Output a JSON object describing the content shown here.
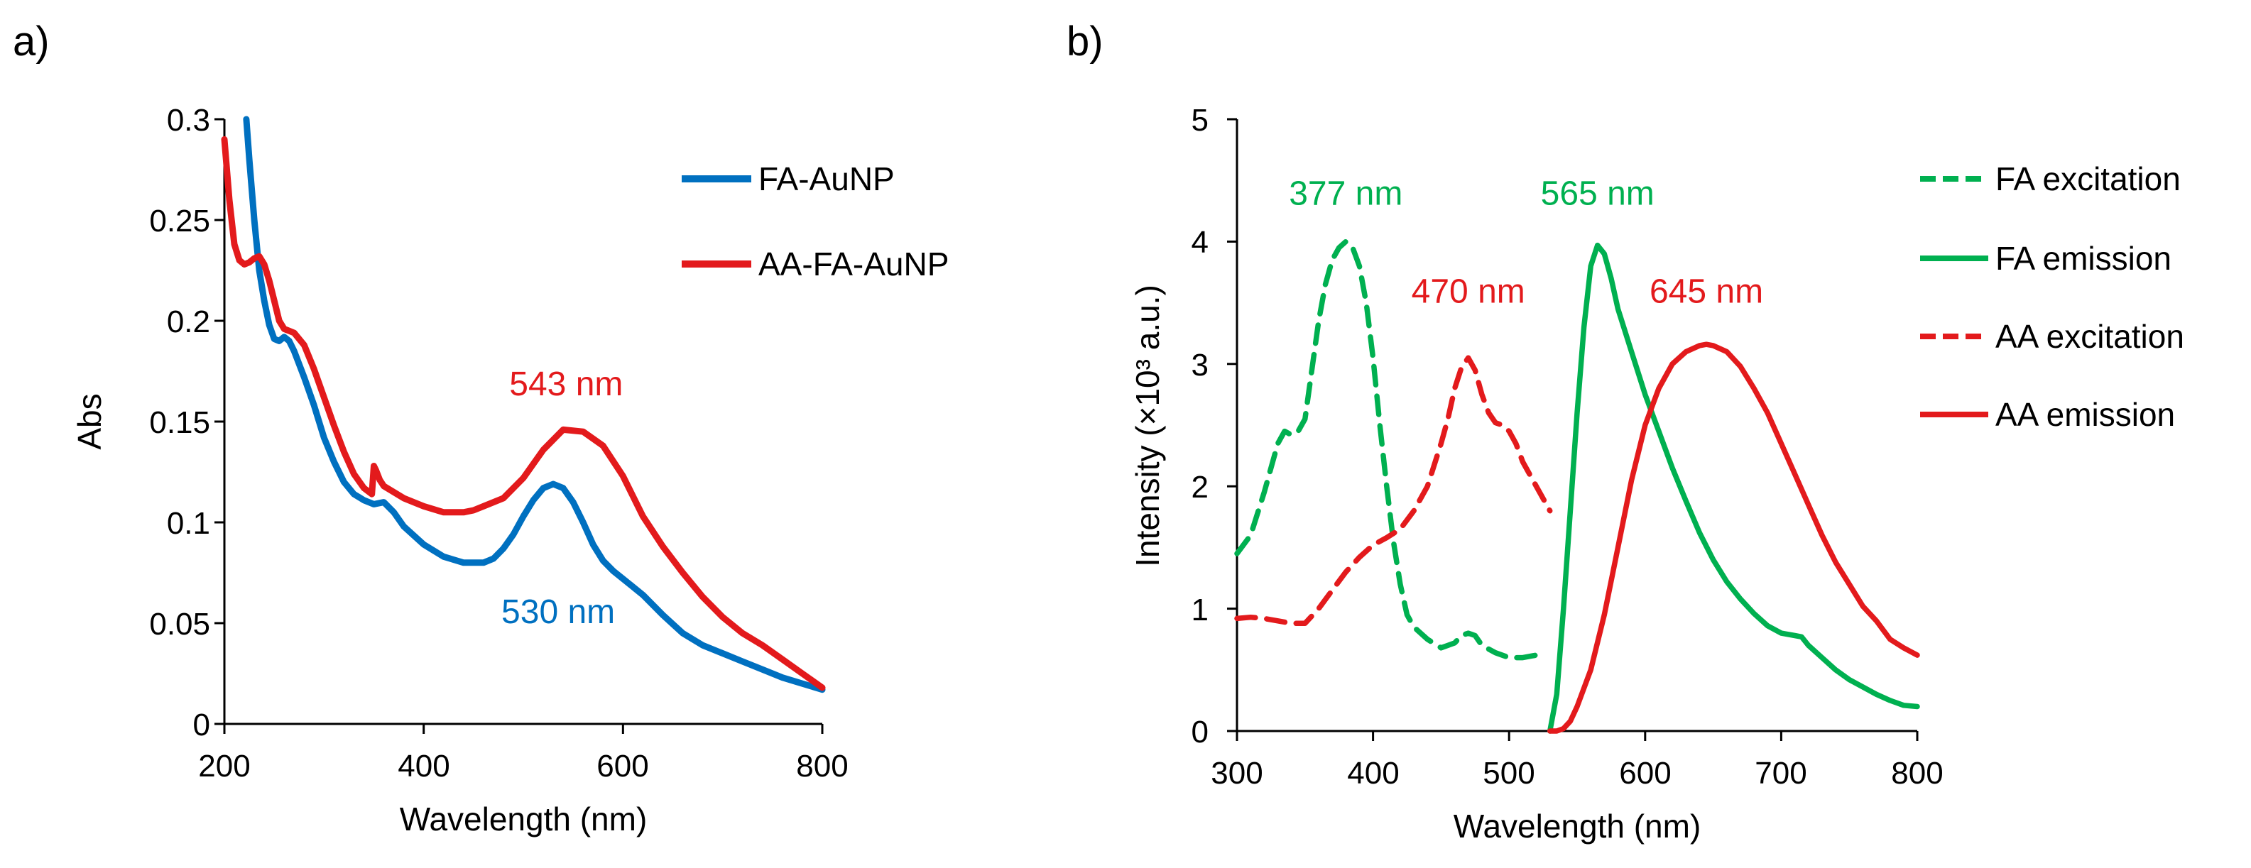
{
  "chart_data": [
    {
      "panel_label": "a)",
      "type": "line",
      "xlabel": "Wavelength (nm)",
      "ylabel": "Abs",
      "xlim": [
        200,
        800
      ],
      "ylim": [
        0,
        0.3
      ],
      "xticks": [
        "200",
        "400",
        "600",
        "800"
      ],
      "yticks": [
        "0",
        "0.05",
        "0.1",
        "0.15",
        "0.2",
        "0.25",
        "0.3"
      ],
      "grid": false,
      "legend_position": "top-right",
      "series": [
        {
          "name": "FA-AuNP",
          "color": "#0070C0",
          "dash": "solid",
          "x": [
            222,
            225,
            230,
            235,
            240,
            245,
            250,
            255,
            260,
            265,
            270,
            280,
            290,
            300,
            310,
            320,
            330,
            340,
            350,
            360,
            370,
            380,
            400,
            420,
            440,
            460,
            470,
            480,
            490,
            500,
            510,
            520,
            530,
            540,
            550,
            560,
            570,
            580,
            590,
            600,
            620,
            640,
            660,
            680,
            700,
            720,
            740,
            760,
            780,
            800
          ],
          "y": [
            0.3,
            0.28,
            0.25,
            0.225,
            0.21,
            0.198,
            0.191,
            0.19,
            0.192,
            0.19,
            0.185,
            0.172,
            0.158,
            0.142,
            0.13,
            0.12,
            0.114,
            0.111,
            0.109,
            0.11,
            0.105,
            0.098,
            0.089,
            0.083,
            0.08,
            0.08,
            0.082,
            0.087,
            0.094,
            0.103,
            0.111,
            0.117,
            0.119,
            0.117,
            0.11,
            0.1,
            0.089,
            0.081,
            0.076,
            0.072,
            0.064,
            0.054,
            0.045,
            0.039,
            0.035,
            0.031,
            0.027,
            0.023,
            0.02,
            0.017
          ]
        },
        {
          "name": "AA-FA-AuNP",
          "color": "#E31A1C",
          "dash": "solid",
          "x": [
            200,
            205,
            210,
            215,
            220,
            225,
            230,
            235,
            240,
            245,
            250,
            255,
            260,
            265,
            270,
            280,
            290,
            300,
            310,
            320,
            330,
            340,
            348,
            350,
            352,
            356,
            360,
            380,
            400,
            420,
            440,
            450,
            460,
            480,
            500,
            520,
            540,
            560,
            580,
            600,
            620,
            640,
            660,
            680,
            700,
            720,
            740,
            760,
            780,
            800
          ],
          "y": [
            0.29,
            0.26,
            0.238,
            0.23,
            0.228,
            0.229,
            0.231,
            0.232,
            0.228,
            0.22,
            0.21,
            0.2,
            0.196,
            0.195,
            0.194,
            0.188,
            0.176,
            0.162,
            0.148,
            0.135,
            0.124,
            0.117,
            0.114,
            0.128,
            0.126,
            0.121,
            0.118,
            0.112,
            0.108,
            0.105,
            0.105,
            0.106,
            0.108,
            0.112,
            0.122,
            0.136,
            0.146,
            0.145,
            0.138,
            0.123,
            0.103,
            0.088,
            0.075,
            0.063,
            0.053,
            0.045,
            0.039,
            0.032,
            0.025,
            0.018
          ]
        }
      ],
      "annotations": [
        {
          "text": "543 nm",
          "color": "#E31A1C",
          "x": 543,
          "y": 0.163
        },
        {
          "text": "530 nm",
          "color": "#0070C0",
          "x": 535,
          "y": 0.05
        }
      ]
    },
    {
      "panel_label": "b)",
      "type": "line",
      "xlabel": "Wavelength (nm)",
      "ylabel": "Intensity (×10³ a.u.)",
      "xlim": [
        300,
        800
      ],
      "ylim": [
        0,
        5
      ],
      "xticks": [
        "300",
        "400",
        "500",
        "600",
        "700",
        "800"
      ],
      "yticks": [
        "0",
        "1",
        "2",
        "3",
        "4",
        "5"
      ],
      "grid": false,
      "legend_position": "top-right",
      "series": [
        {
          "name": "FA excitation",
          "color": "#00B050",
          "dash": "dashed",
          "x": [
            300,
            310,
            320,
            330,
            335,
            340,
            345,
            350,
            355,
            360,
            365,
            370,
            375,
            380,
            385,
            390,
            395,
            400,
            405,
            410,
            415,
            420,
            425,
            430,
            440,
            450,
            460,
            465,
            470,
            475,
            480,
            490,
            500,
            510,
            520,
            525
          ],
          "y": [
            1.45,
            1.6,
            1.95,
            2.35,
            2.45,
            2.42,
            2.45,
            2.55,
            2.95,
            3.35,
            3.65,
            3.85,
            3.95,
            4.0,
            3.95,
            3.8,
            3.5,
            3.05,
            2.5,
            2.0,
            1.55,
            1.2,
            0.95,
            0.85,
            0.75,
            0.68,
            0.72,
            0.78,
            0.8,
            0.78,
            0.7,
            0.64,
            0.6,
            0.6,
            0.62,
            0.62
          ]
        },
        {
          "name": "FA emission",
          "color": "#00B050",
          "dash": "solid",
          "x": [
            530,
            535,
            540,
            545,
            550,
            555,
            560,
            565,
            570,
            575,
            580,
            590,
            600,
            610,
            620,
            630,
            640,
            650,
            660,
            670,
            680,
            690,
            700,
            710,
            715,
            720,
            730,
            740,
            750,
            760,
            770,
            780,
            790,
            800
          ],
          "y": [
            0.0,
            0.3,
            1.0,
            1.8,
            2.6,
            3.3,
            3.8,
            3.97,
            3.9,
            3.7,
            3.45,
            3.1,
            2.75,
            2.45,
            2.15,
            1.88,
            1.62,
            1.4,
            1.22,
            1.08,
            0.96,
            0.86,
            0.8,
            0.78,
            0.77,
            0.7,
            0.6,
            0.5,
            0.42,
            0.36,
            0.3,
            0.25,
            0.21,
            0.2
          ]
        },
        {
          "name": "AA excitation",
          "color": "#E31A1C",
          "dash": "dashed",
          "x": [
            300,
            310,
            320,
            330,
            340,
            350,
            360,
            370,
            380,
            390,
            400,
            410,
            420,
            430,
            440,
            450,
            455,
            460,
            465,
            470,
            475,
            480,
            485,
            490,
            495,
            500,
            505,
            510,
            520,
            530
          ],
          "y": [
            0.92,
            0.93,
            0.92,
            0.9,
            0.88,
            0.88,
            1.0,
            1.15,
            1.3,
            1.42,
            1.52,
            1.58,
            1.65,
            1.8,
            2.0,
            2.35,
            2.55,
            2.8,
            2.97,
            3.05,
            2.95,
            2.75,
            2.6,
            2.52,
            2.5,
            2.45,
            2.35,
            2.2,
            2.0,
            1.8
          ]
        },
        {
          "name": "AA emission",
          "color": "#E31A1C",
          "dash": "solid",
          "x": [
            530,
            535,
            540,
            545,
            550,
            560,
            570,
            580,
            590,
            600,
            610,
            620,
            630,
            640,
            645,
            650,
            660,
            670,
            680,
            690,
            700,
            710,
            720,
            730,
            740,
            750,
            760,
            770,
            780,
            790,
            800
          ],
          "y": [
            0.0,
            0.0,
            0.02,
            0.08,
            0.2,
            0.5,
            0.95,
            1.5,
            2.05,
            2.5,
            2.8,
            3.0,
            3.1,
            3.15,
            3.16,
            3.15,
            3.1,
            2.98,
            2.8,
            2.6,
            2.35,
            2.1,
            1.85,
            1.6,
            1.38,
            1.2,
            1.02,
            0.9,
            0.75,
            0.68,
            0.62
          ]
        }
      ],
      "annotations": [
        {
          "text": "377 nm",
          "color": "#00B050",
          "x": 380,
          "y": 4.3
        },
        {
          "text": "565 nm",
          "color": "#00B050",
          "x": 565,
          "y": 4.3
        },
        {
          "text": "470 nm",
          "color": "#E31A1C",
          "x": 470,
          "y": 3.5
        },
        {
          "text": "645 nm",
          "color": "#E31A1C",
          "x": 645,
          "y": 3.5
        }
      ]
    }
  ]
}
